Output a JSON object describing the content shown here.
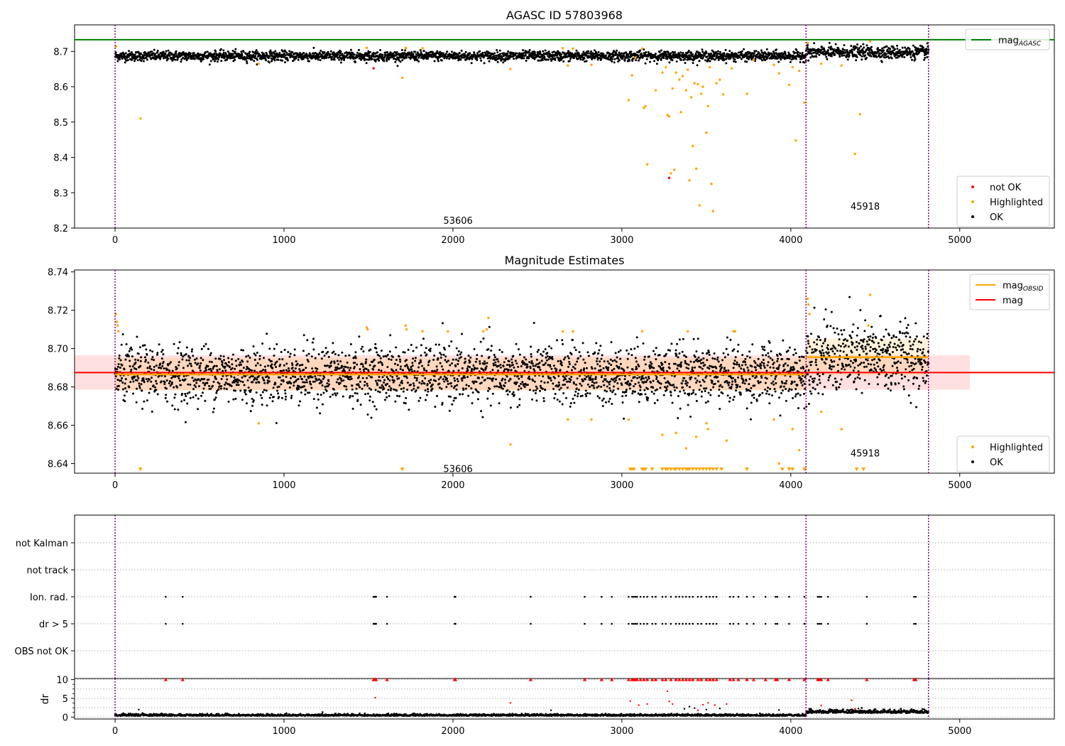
{
  "chart_data": [
    {
      "type": "scatter",
      "title": "AGASC ID 57803968",
      "xlim": [
        -240,
        5560
      ],
      "ylim": [
        8.2,
        8.775
      ],
      "x_ticks": [
        "0",
        "1000",
        "2000",
        "3000",
        "4000",
        "5000"
      ],
      "x_tick_values": [
        0,
        1000,
        2000,
        3000,
        4000,
        5000
      ],
      "y_ticks": [
        "8.2",
        "8.3",
        "8.4",
        "8.5",
        "8.6",
        "8.7"
      ],
      "y_tick_values": [
        8.2,
        8.3,
        8.4,
        8.5,
        8.6,
        8.7
      ],
      "legend_upper": {
        "placement": "upper-right",
        "entries": [
          {
            "label": "mag",
            "sub": "AGASC",
            "color": "#008000",
            "kind": "line"
          }
        ]
      },
      "legend_lower": {
        "placement": "lower-right",
        "entries": [
          {
            "label": "not OK",
            "color": "#ff0000",
            "kind": "dot"
          },
          {
            "label": "Highlighted",
            "color": "#ffa500",
            "kind": "dot"
          },
          {
            "label": "OK",
            "color": "#000000",
            "kind": "dot"
          }
        ]
      },
      "obsid_labels": [
        {
          "text": "53606",
          "x": 2030,
          "y": 8.222
        },
        {
          "text": "45918",
          "x": 4440,
          "y": 8.262
        }
      ],
      "vlines": [
        0,
        4090,
        4815
      ],
      "agasc_mag": 8.733,
      "ok_segments": [
        {
          "x0": 0,
          "x1": 4090,
          "center": 8.687,
          "spread": 0.007
        },
        {
          "x0": 4090,
          "x1": 4815,
          "center": 8.697,
          "spread": 0.009
        }
      ],
      "highlighted_points": [
        [
          5,
          8.714
        ],
        [
          150,
          8.51
        ],
        [
          850,
          8.665
        ],
        [
          1490,
          8.71
        ],
        [
          1700,
          8.625
        ],
        [
          1720,
          8.71
        ],
        [
          1820,
          8.709
        ],
        [
          2340,
          8.65
        ],
        [
          2650,
          8.709
        ],
        [
          2680,
          8.66
        ],
        [
          2710,
          8.708
        ],
        [
          2820,
          8.662
        ],
        [
          3040,
          8.562
        ],
        [
          3060,
          8.632
        ],
        [
          3080,
          8.682
        ],
        [
          3120,
          8.708
        ],
        [
          3130,
          8.54
        ],
        [
          3140,
          8.545
        ],
        [
          3150,
          8.38
        ],
        [
          3200,
          8.59
        ],
        [
          3240,
          8.64
        ],
        [
          3260,
          8.655
        ],
        [
          3270,
          8.52
        ],
        [
          3280,
          8.516
        ],
        [
          3290,
          8.355
        ],
        [
          3300,
          8.595
        ],
        [
          3310,
          8.365
        ],
        [
          3320,
          8.64
        ],
        [
          3340,
          8.62
        ],
        [
          3350,
          8.528
        ],
        [
          3360,
          8.63
        ],
        [
          3380,
          8.59
        ],
        [
          3390,
          8.648
        ],
        [
          3400,
          8.335
        ],
        [
          3410,
          8.57
        ],
        [
          3420,
          8.432
        ],
        [
          3430,
          8.61
        ],
        [
          3440,
          8.368
        ],
        [
          3450,
          8.607
        ],
        [
          3460,
          8.264
        ],
        [
          3470,
          8.58
        ],
        [
          3480,
          8.6
        ],
        [
          3500,
          8.47
        ],
        [
          3510,
          8.545
        ],
        [
          3520,
          8.655
        ],
        [
          3530,
          8.325
        ],
        [
          3540,
          8.248
        ],
        [
          3560,
          8.61
        ],
        [
          3580,
          8.62
        ],
        [
          3600,
          8.578
        ],
        [
          3650,
          8.652
        ],
        [
          3740,
          8.58
        ],
        [
          3780,
          8.676
        ],
        [
          3900,
          8.662
        ],
        [
          3930,
          8.638
        ],
        [
          3990,
          8.605
        ],
        [
          4010,
          8.655
        ],
        [
          4030,
          8.448
        ],
        [
          4050,
          8.645
        ],
        [
          4080,
          8.555
        ],
        [
          4100,
          8.724
        ],
        [
          4180,
          8.665
        ],
        [
          4300,
          8.66
        ],
        [
          4380,
          8.41
        ],
        [
          4410,
          8.522
        ],
        [
          4470,
          8.728
        ]
      ],
      "notok_points": [
        [
          1530,
          8.652
        ],
        [
          3280,
          8.342
        ]
      ]
    },
    {
      "type": "scatter",
      "title": "Magnitude Estimates",
      "xlim": [
        -240,
        5560
      ],
      "ylim": [
        8.635,
        8.741
      ],
      "x_ticks": [
        "0",
        "1000",
        "2000",
        "3000",
        "4000",
        "5000"
      ],
      "x_tick_values": [
        0,
        1000,
        2000,
        3000,
        4000,
        5000
      ],
      "y_ticks": [
        "8.64",
        "8.66",
        "8.68",
        "8.70",
        "8.72",
        "8.74"
      ],
      "y_tick_values": [
        8.64,
        8.66,
        8.68,
        8.7,
        8.72,
        8.74
      ],
      "legend_upper": {
        "placement": "upper-right",
        "entries": [
          {
            "label": "mag",
            "sub": "OBSID",
            "color": "#ffa500",
            "kind": "line"
          },
          {
            "label": "mag",
            "sub": "",
            "color": "#ff0000",
            "kind": "line"
          }
        ]
      },
      "legend_lower": {
        "placement": "lower-right",
        "entries": [
          {
            "label": "Highlighted",
            "color": "#ffa500",
            "kind": "dot"
          },
          {
            "label": "OK",
            "color": "#000000",
            "kind": "dot"
          }
        ]
      },
      "obsid_labels": [
        {
          "text": "53606",
          "x": 2030,
          "y": 8.6375
        },
        {
          "text": "45918",
          "x": 4440,
          "y": 8.6455
        }
      ],
      "vlines": [
        0,
        4090,
        4815
      ],
      "mag": 8.6875,
      "mag_band": [
        8.6785,
        8.6965
      ],
      "mag_band_xlim": [
        -240,
        5060
      ],
      "obsid_mag": [
        {
          "x0": 0,
          "x1": 4090,
          "mag": 8.6865,
          "band": [
            8.678,
            8.695
          ]
        },
        {
          "x0": 4090,
          "x1": 4815,
          "mag": 8.6955,
          "band": [
            8.686,
            8.705
          ]
        }
      ],
      "ok_segments": [
        {
          "x0": 0,
          "x1": 4090,
          "center": 8.6865,
          "spread": 0.0075
        },
        {
          "x0": 4090,
          "x1": 4815,
          "center": 8.6955,
          "spread": 0.0095
        }
      ],
      "highlighted_points": [
        [
          5,
          8.718
        ],
        [
          10,
          8.714
        ],
        [
          15,
          8.712
        ],
        [
          20,
          8.709
        ],
        [
          850,
          8.661
        ],
        [
          1490,
          8.711
        ],
        [
          1495,
          8.71
        ],
        [
          1720,
          8.712
        ],
        [
          1725,
          8.71
        ],
        [
          1820,
          8.709
        ],
        [
          1970,
          8.709
        ],
        [
          2180,
          8.709
        ],
        [
          2210,
          8.716
        ],
        [
          2200,
          8.71
        ],
        [
          2340,
          8.65
        ],
        [
          2650,
          8.709
        ],
        [
          2680,
          8.663
        ],
        [
          2710,
          8.709
        ],
        [
          2820,
          8.663
        ],
        [
          3040,
          8.663
        ],
        [
          3120,
          8.709
        ],
        [
          3240,
          8.655
        ],
        [
          3320,
          8.656
        ],
        [
          3380,
          8.648
        ],
        [
          3390,
          8.709
        ],
        [
          3440,
          8.654
        ],
        [
          3500,
          8.661
        ],
        [
          3510,
          8.658
        ],
        [
          3620,
          8.652
        ],
        [
          3660,
          8.709
        ],
        [
          3670,
          8.709
        ],
        [
          3900,
          8.663
        ],
        [
          3930,
          8.64
        ],
        [
          4010,
          8.658
        ],
        [
          4050,
          8.647
        ],
        [
          4100,
          8.726
        ],
        [
          4105,
          8.723
        ],
        [
          4110,
          8.718
        ],
        [
          4180,
          8.667
        ],
        [
          4300,
          8.658
        ],
        [
          4470,
          8.728
        ],
        [
          4460,
          8.712
        ]
      ],
      "lower_limits": [
        150,
        1700,
        3050,
        3060,
        3070,
        3120,
        3130,
        3140,
        3180,
        3240,
        3260,
        3270,
        3290,
        3310,
        3320,
        3340,
        3360,
        3380,
        3390,
        3400,
        3420,
        3440,
        3460,
        3480,
        3500,
        3520,
        3540,
        3560,
        3590,
        3740,
        3950,
        3990,
        4010,
        4080,
        4390,
        4430
      ]
    },
    {
      "type": "scatter",
      "title": "",
      "xlim": [
        -240,
        5560
      ],
      "categories": [
        "not Kalman",
        "not track",
        "Ion. rad.",
        "dr > 5",
        "OBS not OK"
      ],
      "vlines": [
        0,
        4090,
        4815
      ],
      "flag_x": [
        300,
        400,
        1530,
        1535,
        1540,
        1545,
        1610,
        2010,
        2015,
        2460,
        2780,
        2880,
        2940,
        3040,
        3060,
        3070,
        3080,
        3090,
        3110,
        3130,
        3150,
        3180,
        3200,
        3240,
        3260,
        3290,
        3320,
        3340,
        3360,
        3380,
        3400,
        3420,
        3450,
        3470,
        3500,
        3520,
        3540,
        3560,
        3640,
        3660,
        3690,
        3740,
        3780,
        3850,
        3910,
        3920,
        3990,
        4080,
        4160,
        4170,
        4180,
        4220,
        4450,
        4730,
        4740
      ]
    },
    {
      "type": "scatter",
      "title": "",
      "ylabel": "dr",
      "xlim": [
        -240,
        5560
      ],
      "ylim": [
        -0.5,
        10.3
      ],
      "x_ticks": [
        "0",
        "1000",
        "2000",
        "3000",
        "4000",
        "5000"
      ],
      "x_tick_values": [
        0,
        1000,
        2000,
        3000,
        4000,
        5000
      ],
      "y_ticks": [
        "0",
        "5",
        "10"
      ],
      "y_tick_values": [
        0,
        5,
        10
      ],
      "vlines": [
        0,
        4090,
        4815
      ],
      "capped_x": [
        300,
        400,
        1530,
        1535,
        1540,
        1545,
        1610,
        2010,
        2015,
        2460,
        2780,
        2880,
        2940,
        3040,
        3060,
        3070,
        3080,
        3090,
        3110,
        3130,
        3150,
        3180,
        3200,
        3240,
        3260,
        3290,
        3320,
        3340,
        3360,
        3380,
        3400,
        3420,
        3450,
        3470,
        3500,
        3520,
        3540,
        3560,
        3640,
        3660,
        3690,
        3740,
        3780,
        3850,
        3910,
        3920,
        3990,
        4080,
        4160,
        4170,
        4180,
        4220,
        4450,
        4730,
        4740
      ],
      "notok_points": [
        [
          1540,
          5.2
        ],
        [
          2340,
          3.8
        ],
        [
          3050,
          4.3
        ],
        [
          3100,
          3.2
        ],
        [
          3150,
          3.5
        ],
        [
          3270,
          6.9
        ],
        [
          3280,
          4.2
        ],
        [
          3300,
          3.5
        ],
        [
          3450,
          1.8
        ],
        [
          3480,
          3.3
        ],
        [
          3510,
          3.8
        ],
        [
          3550,
          3.2
        ],
        [
          3620,
          3.5
        ],
        [
          4180,
          3.1
        ],
        [
          4360,
          4.5
        ],
        [
          4380,
          2.2
        ]
      ],
      "scatter_points": [
        [
          140,
          2.0
        ],
        [
          2580,
          1.8
        ],
        [
          3370,
          2.2
        ],
        [
          3400,
          2.8
        ],
        [
          3430,
          2.4
        ],
        [
          3500,
          2.0
        ],
        [
          3580,
          2.3
        ],
        [
          3930,
          1.9
        ],
        [
          4120,
          2.2
        ],
        [
          4240,
          2.0
        ],
        [
          4400,
          2.3
        ],
        [
          4640,
          1.8
        ]
      ]
    }
  ]
}
